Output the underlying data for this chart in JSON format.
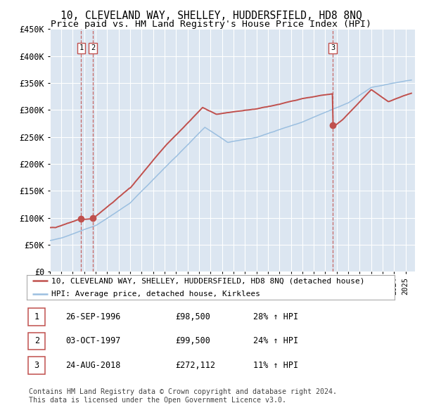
{
  "title": "10, CLEVELAND WAY, SHELLEY, HUDDERSFIELD, HD8 8NQ",
  "subtitle": "Price paid vs. HM Land Registry's House Price Index (HPI)",
  "ylim": [
    0,
    450000
  ],
  "yticks": [
    0,
    50000,
    100000,
    150000,
    200000,
    250000,
    300000,
    350000,
    400000,
    450000
  ],
  "ytick_labels": [
    "£0",
    "£50K",
    "£100K",
    "£150K",
    "£200K",
    "£250K",
    "£300K",
    "£350K",
    "£400K",
    "£450K"
  ],
  "background_color": "#ffffff",
  "plot_bg_color": "#dce6f1",
  "grid_color": "#ffffff",
  "hpi_line_color": "#9bbfe0",
  "price_line_color": "#c0504d",
  "transactions": [
    {
      "date": 1996.73,
      "price": 98500,
      "label": "1"
    },
    {
      "date": 1997.75,
      "price": 99500,
      "label": "2"
    },
    {
      "date": 2018.65,
      "price": 272112,
      "label": "3"
    }
  ],
  "vline_dates": [
    1996.73,
    1997.75,
    2018.65
  ],
  "legend_entries": [
    "10, CLEVELAND WAY, SHELLEY, HUDDERSFIELD, HD8 8NQ (detached house)",
    "HPI: Average price, detached house, Kirklees"
  ],
  "table_rows": [
    [
      "1",
      "26-SEP-1996",
      "£98,500",
      "28% ↑ HPI"
    ],
    [
      "2",
      "03-OCT-1997",
      "£99,500",
      "24% ↑ HPI"
    ],
    [
      "3",
      "24-AUG-2018",
      "£272,112",
      "11% ↑ HPI"
    ]
  ],
  "footer": "Contains HM Land Registry data © Crown copyright and database right 2024.\nThis data is licensed under the Open Government Licence v3.0.",
  "title_fontsize": 10.5,
  "subtitle_fontsize": 9.5,
  "tick_fontsize": 8.5,
  "legend_fontsize": 8,
  "table_fontsize": 8.5
}
